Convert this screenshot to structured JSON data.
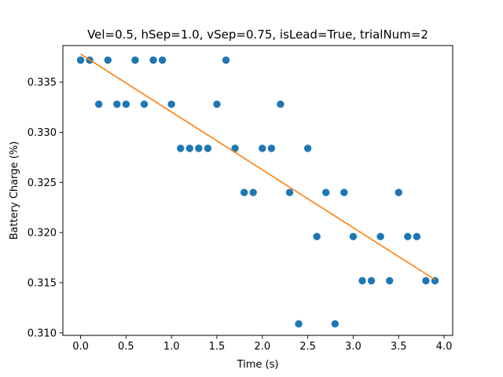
{
  "chart_data": {
    "type": "scatter",
    "title": "Vel=0.5, hSep=1.0, vSep=0.75, isLead=True, trialNum=2",
    "xlabel": "Time (s)",
    "ylabel": "Battery Charge (%)",
    "xlim": [
      -0.195,
      4.095
    ],
    "ylim": [
      0.30975,
      0.33865
    ],
    "xticks": [
      0.0,
      0.5,
      1.0,
      1.5,
      2.0,
      2.5,
      3.0,
      3.5,
      4.0
    ],
    "xtick_labels": [
      "0.0",
      "0.5",
      "1.0",
      "1.5",
      "2.0",
      "2.5",
      "3.0",
      "3.5",
      "4.0"
    ],
    "yticks": [
      0.31,
      0.315,
      0.32,
      0.325,
      0.33,
      0.335
    ],
    "ytick_labels": [
      "0.310",
      "0.315",
      "0.320",
      "0.325",
      "0.330",
      "0.335"
    ],
    "grid": false,
    "legend": "none",
    "series": [
      {
        "kind": "scatter",
        "color": "#1f77b4",
        "x": [
          0.0,
          0.1,
          0.2,
          0.3,
          0.4,
          0.5,
          0.6,
          0.7,
          0.8,
          0.9,
          1.0,
          1.1,
          1.2,
          1.3,
          1.4,
          1.5,
          1.6,
          1.7,
          1.8,
          1.9,
          2.0,
          2.1,
          2.2,
          2.3,
          2.4,
          2.5,
          2.6,
          2.7,
          2.8,
          2.9,
          3.0,
          3.1,
          3.2,
          3.3,
          3.4,
          3.5,
          3.6,
          3.7,
          3.8,
          3.9
        ],
        "y": [
          0.3372,
          0.3372,
          0.3328,
          0.3372,
          0.3328,
          0.3328,
          0.3372,
          0.3328,
          0.3372,
          0.3372,
          0.3328,
          0.3284,
          0.3284,
          0.3284,
          0.3284,
          0.3328,
          0.3372,
          0.3284,
          0.324,
          0.324,
          0.3284,
          0.3284,
          0.3328,
          0.324,
          0.3109,
          0.3284,
          0.3196,
          0.324,
          0.3109,
          0.324,
          0.3196,
          0.3152,
          0.3152,
          0.3196,
          0.3152,
          0.324,
          0.3196,
          0.3196,
          0.3152,
          0.3152
        ]
      },
      {
        "kind": "line",
        "color": "#ff7f0e",
        "x": [
          0.0,
          3.9
        ],
        "y": [
          0.3378,
          0.3153
        ]
      }
    ]
  }
}
